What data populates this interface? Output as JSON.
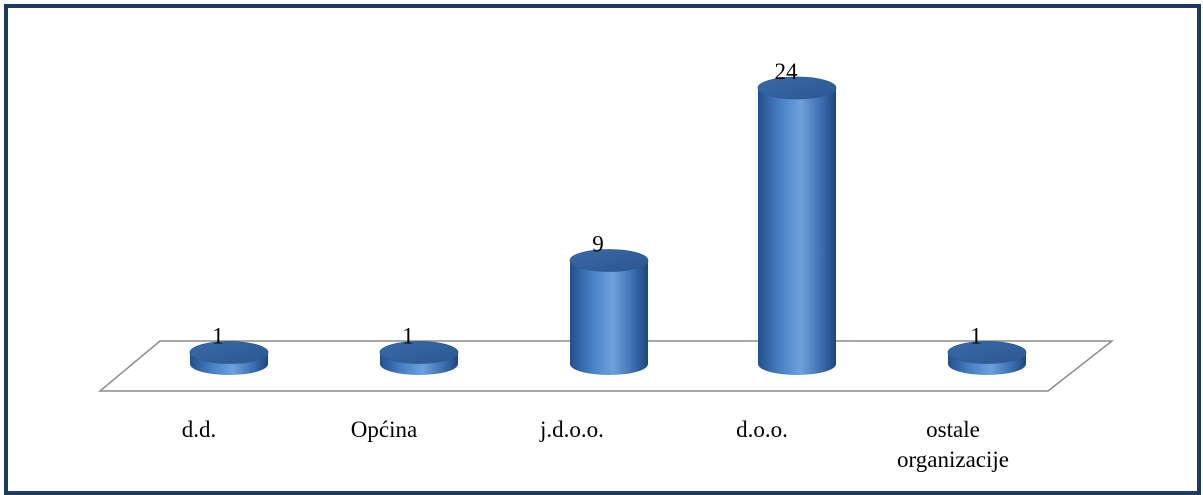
{
  "chart_data": {
    "type": "bar",
    "categories": [
      "d.d.",
      "Općina",
      "j.d.o.o.",
      "d.o.o.",
      "ostale organizacije"
    ],
    "category_lines": [
      [
        "d.d."
      ],
      [
        "Općina"
      ],
      [
        "j.d.o.o."
      ],
      [
        "d.o.o."
      ],
      [
        "ostale",
        "organizacije"
      ]
    ],
    "values": [
      1,
      1,
      9,
      24,
      1
    ],
    "data_labels": [
      "1",
      "1",
      "9",
      "24",
      "1"
    ],
    "bar_color": "#3f73b8",
    "frame_color": "#1f3a5c",
    "grid": false,
    "legend": "none"
  }
}
